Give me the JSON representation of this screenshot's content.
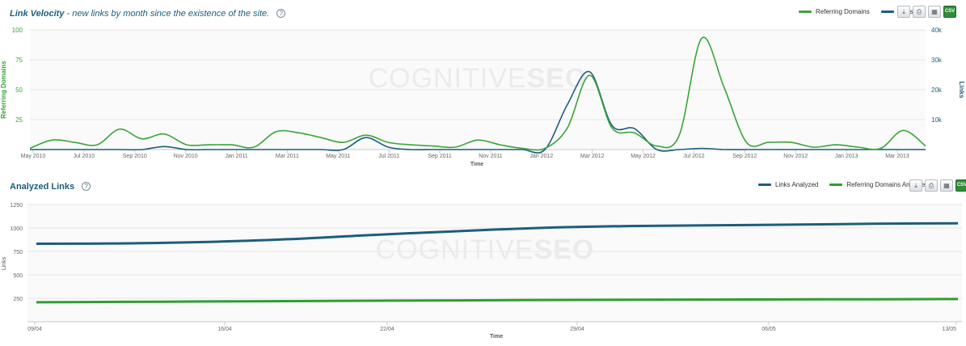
{
  "colors": {
    "green": "#3aa43a",
    "blue": "#1d5e7a",
    "grid": "#e6e6e6",
    "plot_bg": "#fafafa"
  },
  "watermark": {
    "left": "COGNITIVE",
    "right": "SEO"
  },
  "panel1": {
    "title": "Link Velocity",
    "subtitle": "- new links by month since the existence of the site.",
    "help": "?",
    "legend": [
      "Referring Domains",
      "Links"
    ],
    "tools": [
      "download-icon",
      "print-icon",
      "table-icon",
      "csv-icon"
    ],
    "csv_label": "CSV"
  },
  "panel2": {
    "title": "Analyzed Links",
    "help": "?",
    "legend": [
      "Links Analyzed",
      "Referring Domains Analyzed"
    ],
    "tools": [
      "download-icon",
      "print-icon",
      "table-icon",
      "csv-icon"
    ],
    "csv_label": "CSV"
  },
  "chart_data": [
    {
      "type": "line",
      "title": "Link Velocity",
      "xlabel": "Time",
      "ylabel": "Referring Domains",
      "y2label": "Links",
      "x_ticks": [
        "May 2010",
        "Jul 2010",
        "Sep 2010",
        "Nov 2010",
        "Jan 2011",
        "Mar 2011",
        "May 2011",
        "Jul 2011",
        "Sep 2011",
        "Nov 2011",
        "Jan 2012",
        "Mar 2012",
        "May 2012",
        "Jul 2012",
        "Sep 2012",
        "Nov 2012",
        "Jan 2013",
        "Mar 2013"
      ],
      "y_ticks": [
        "25",
        "50",
        "75",
        "100"
      ],
      "y2_ticks": [
        "10k",
        "20k",
        "30k",
        "40k"
      ],
      "ylim": [
        0,
        100
      ],
      "y2lim": [
        0,
        40000
      ],
      "legend_position": "top-right",
      "series": [
        {
          "name": "Referring Domains",
          "axis": "left",
          "color": "#3aa43a",
          "values": [
            1,
            8,
            6,
            4,
            17,
            9,
            13,
            4,
            4,
            4,
            2,
            15,
            14,
            10,
            6,
            12,
            6,
            4,
            3,
            2,
            8,
            4,
            1,
            1,
            18,
            62,
            18,
            14,
            3,
            12,
            93,
            52,
            6,
            6,
            6,
            2,
            4,
            2,
            1,
            16,
            3
          ]
        },
        {
          "name": "Links",
          "axis": "right",
          "color": "#1d5e7a",
          "values": [
            0,
            0,
            0,
            0,
            0,
            0,
            1000,
            0,
            0,
            0,
            0,
            0,
            0,
            0,
            0,
            4000,
            800,
            0,
            0,
            0,
            0,
            0,
            0,
            0,
            15000,
            26000,
            8000,
            7000,
            0,
            0,
            400,
            0,
            0,
            0,
            0,
            0,
            0,
            0,
            0,
            0,
            0
          ]
        }
      ]
    },
    {
      "type": "line",
      "title": "Analyzed Links",
      "xlabel": "Time",
      "ylabel": "Links",
      "x_ticks": [
        "09/04",
        "16/04",
        "22/04",
        "29/04",
        "06/05",
        "13/05"
      ],
      "y_ticks": [
        "250",
        "500",
        "750",
        "1000",
        "1250"
      ],
      "ylim": [
        0,
        1250
      ],
      "legend_position": "top-right",
      "series": [
        {
          "name": "Links Analyzed",
          "color": "#1d5e7a",
          "values": [
            832,
            835,
            850,
            880,
            925,
            965,
            1000,
            1020,
            1028,
            1035,
            1045,
            1050
          ]
        },
        {
          "name": "Referring Domains Analyzed",
          "color": "#2f9e33",
          "values": [
            208,
            212,
            216,
            220,
            224,
            228,
            232,
            234,
            236,
            238,
            240,
            242
          ]
        }
      ]
    }
  ]
}
